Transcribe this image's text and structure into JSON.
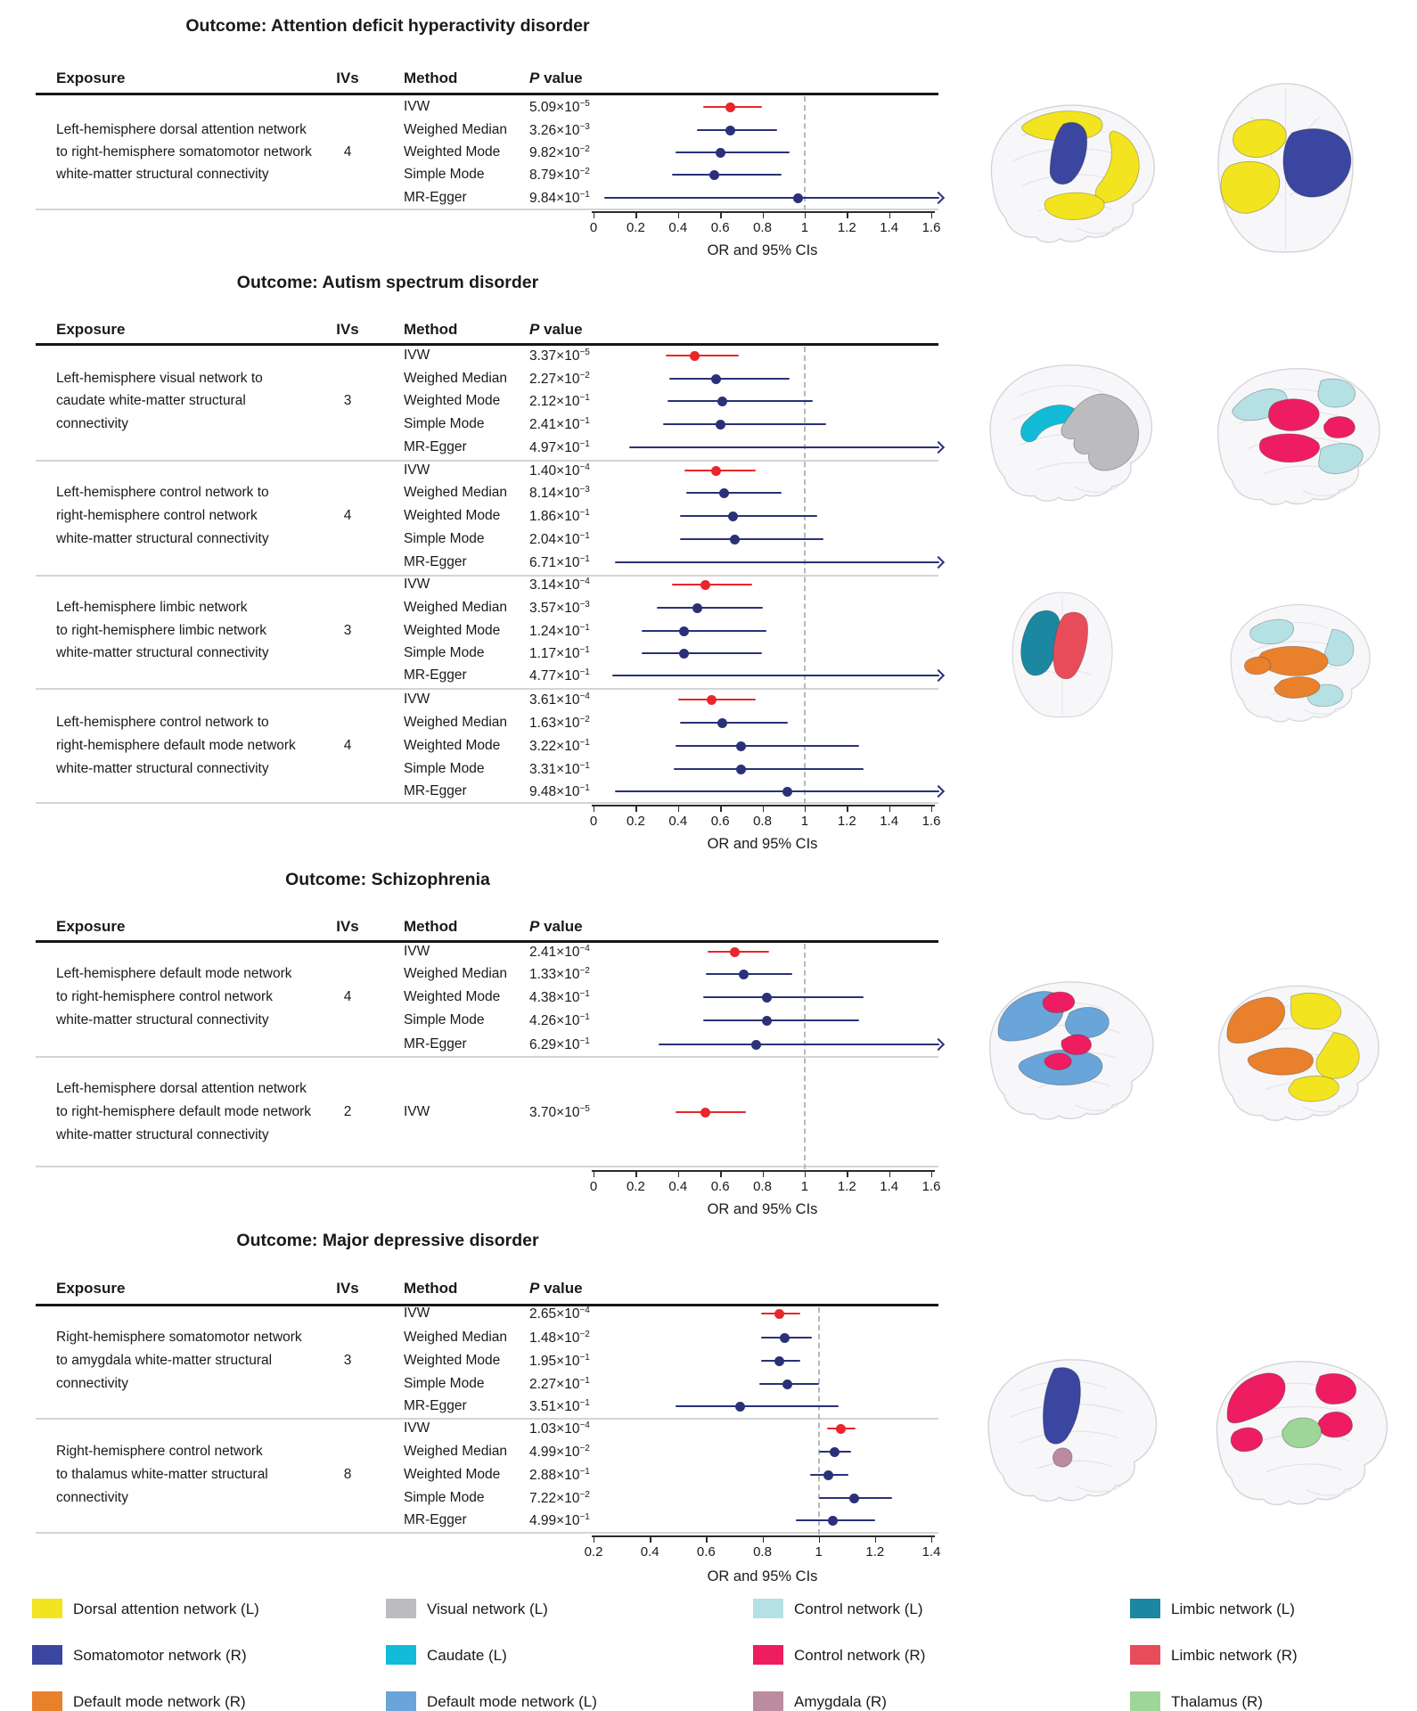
{
  "figure_colors": {
    "ivw_red": "#e8262b",
    "ci_navy": "#2a3178",
    "ref_dash": "#b8b8b8"
  },
  "chart_data": [
    {
      "type": "forest",
      "outcome": "Outcome: Attention deficit hyperactivity disorder",
      "columns": {
        "exposure": "Exposure",
        "ivs": "IVs",
        "method": "Method",
        "p_italic": "P",
        "p_rest": " value"
      },
      "axis": {
        "min": 0,
        "max": 1.6,
        "ticks": [
          "0",
          "0.2",
          "0.4",
          "0.6",
          "0.8",
          "1",
          "1.2",
          "1.4",
          "1.6"
        ],
        "tick_values": [
          0,
          0.2,
          0.4,
          0.6,
          0.8,
          1,
          1.2,
          1.4,
          1.6
        ],
        "label": "OR and 95% CIs",
        "ref_value": 1
      },
      "exposures": [
        {
          "lines": [
            "Left-hemisphere dorsal attention network",
            "to right-hemisphere somatomotor network",
            "white-matter structural connectivity"
          ],
          "ivs": "4",
          "rows": [
            {
              "method": "IVW",
              "p_base": "5.09×10",
              "p_exp": "−5",
              "or": 0.65,
              "lo": 0.52,
              "hi": 0.8,
              "significant": true
            },
            {
              "method": "Weighed Median",
              "p_base": "3.26×10",
              "p_exp": "−3",
              "or": 0.65,
              "lo": 0.49,
              "hi": 0.87
            },
            {
              "method": "Weighted Mode",
              "p_base": "9.82×10",
              "p_exp": "−2",
              "or": 0.6,
              "lo": 0.39,
              "hi": 0.93
            },
            {
              "method": "Simple Mode",
              "p_base": "8.79×10",
              "p_exp": "−2",
              "or": 0.57,
              "lo": 0.37,
              "hi": 0.89
            },
            {
              "method": "MR-Egger",
              "p_base": "9.84×10",
              "p_exp": "−1",
              "or": 0.97,
              "lo": 0.05,
              "arrow": true
            }
          ]
        }
      ],
      "brains": [
        {
          "id": "adhd-lateral",
          "view": "lateral",
          "regions": [
            {
              "network": "Dorsal attention network (L)",
              "color": "#f2e41e"
            },
            {
              "network": "Somatomotor network (R)",
              "color": "#3a46a0"
            }
          ]
        },
        {
          "id": "adhd-axial",
          "view": "axial",
          "regions": [
            {
              "network": "Dorsal attention network (L)",
              "color": "#f2e41e"
            },
            {
              "network": "Somatomotor network (R)",
              "color": "#3a46a0"
            }
          ]
        }
      ]
    },
    {
      "type": "forest",
      "outcome": "Outcome: Autism spectrum disorder",
      "columns": {
        "exposure": "Exposure",
        "ivs": "IVs",
        "method": "Method",
        "p_italic": "P",
        "p_rest": " value"
      },
      "axis": {
        "min": 0,
        "max": 1.6,
        "ticks": [
          "0",
          "0.2",
          "0.4",
          "0.6",
          "0.8",
          "1",
          "1.2",
          "1.4",
          "1.6"
        ],
        "tick_values": [
          0,
          0.2,
          0.4,
          0.6,
          0.8,
          1,
          1.2,
          1.4,
          1.6
        ],
        "label": "OR and 95% CIs",
        "ref_value": 1
      },
      "exposures": [
        {
          "lines": [
            "Left-hemisphere visual network to",
            "caudate white-matter structural",
            "connectivity"
          ],
          "ivs": "3",
          "rows": [
            {
              "method": "IVW",
              "p_base": "3.37×10",
              "p_exp": "−5",
              "or": 0.48,
              "lo": 0.34,
              "hi": 0.69,
              "significant": true
            },
            {
              "method": "Weighed Median",
              "p_base": "2.27×10",
              "p_exp": "−2",
              "or": 0.58,
              "lo": 0.36,
              "hi": 0.93
            },
            {
              "method": "Weighted Mode",
              "p_base": "2.12×10",
              "p_exp": "−1",
              "or": 0.61,
              "lo": 0.35,
              "hi": 1.04
            },
            {
              "method": "Simple Mode",
              "p_base": "2.41×10",
              "p_exp": "−1",
              "or": 0.6,
              "lo": 0.33,
              "hi": 1.1
            },
            {
              "method": "MR-Egger",
              "p_base": "4.97×10",
              "p_exp": "−1",
              "lo": 0.17,
              "arrow": true,
              "no_dot": true
            }
          ]
        },
        {
          "lines": [
            "Left-hemisphere control network to",
            "right-hemisphere control network",
            "white-matter structural connectivity"
          ],
          "ivs": "4",
          "rows": [
            {
              "method": "IVW",
              "p_base": "1.40×10",
              "p_exp": "−4",
              "or": 0.58,
              "lo": 0.43,
              "hi": 0.77,
              "significant": true
            },
            {
              "method": "Weighed Median",
              "p_base": "8.14×10",
              "p_exp": "−3",
              "or": 0.62,
              "lo": 0.44,
              "hi": 0.89
            },
            {
              "method": "Weighted Mode",
              "p_base": "1.86×10",
              "p_exp": "−1",
              "or": 0.66,
              "lo": 0.41,
              "hi": 1.06
            },
            {
              "method": "Simple Mode",
              "p_base": "2.04×10",
              "p_exp": "−1",
              "or": 0.67,
              "lo": 0.41,
              "hi": 1.09
            },
            {
              "method": "MR-Egger",
              "p_base": "6.71×10",
              "p_exp": "−1",
              "lo": 0.1,
              "arrow": true,
              "no_dot": true
            }
          ]
        },
        {
          "lines": [
            "Left-hemisphere limbic network",
            "to right-hemisphere limbic network",
            "white-matter structural connectivity"
          ],
          "ivs": "3",
          "rows": [
            {
              "method": "IVW",
              "p_base": "3.14×10",
              "p_exp": "−4",
              "or": 0.53,
              "lo": 0.37,
              "hi": 0.75,
              "significant": true
            },
            {
              "method": "Weighed Median",
              "p_base": "3.57×10",
              "p_exp": "−3",
              "or": 0.49,
              "lo": 0.3,
              "hi": 0.8
            },
            {
              "method": "Weighted Mode",
              "p_base": "1.24×10",
              "p_exp": "−1",
              "or": 0.43,
              "lo": 0.23,
              "hi": 0.82
            },
            {
              "method": "Simple Mode",
              "p_base": "1.17×10",
              "p_exp": "−1",
              "or": 0.43,
              "lo": 0.23,
              "hi": 0.8
            },
            {
              "method": "MR-Egger",
              "p_base": "4.77×10",
              "p_exp": "−1",
              "lo": 0.09,
              "arrow": true,
              "no_dot": true
            }
          ]
        },
        {
          "lines": [
            "Left-hemisphere control network to",
            "right-hemisphere default mode network",
            "white-matter structural connectivity"
          ],
          "ivs": "4",
          "rows": [
            {
              "method": "IVW",
              "p_base": "3.61×10",
              "p_exp": "−4",
              "or": 0.56,
              "lo": 0.4,
              "hi": 0.77,
              "significant": true
            },
            {
              "method": "Weighed Median",
              "p_base": "1.63×10",
              "p_exp": "−2",
              "or": 0.61,
              "lo": 0.41,
              "hi": 0.92
            },
            {
              "method": "Weighted Mode",
              "p_base": "3.22×10",
              "p_exp": "−1",
              "or": 0.7,
              "lo": 0.39,
              "hi": 1.26
            },
            {
              "method": "Simple Mode",
              "p_base": "3.31×10",
              "p_exp": "−1",
              "or": 0.7,
              "lo": 0.38,
              "hi": 1.28
            },
            {
              "method": "MR-Egger",
              "p_base": "9.48×10",
              "p_exp": "−1",
              "or": 0.92,
              "lo": 0.1,
              "arrow": true
            }
          ]
        }
      ],
      "brains": [
        {
          "id": "asd-caudate-visual",
          "view": "lateral",
          "regions": [
            {
              "network": "Caudate (L)",
              "color": "#12bcd8"
            },
            {
              "network": "Visual network (L)",
              "color": "#bcbcbe"
            }
          ]
        },
        {
          "id": "asd-control-control",
          "view": "lateral",
          "regions": [
            {
              "network": "Control network (L)",
              "color": "#b5e0e4"
            },
            {
              "network": "Control network (R)",
              "color": "#ee1d62"
            }
          ]
        },
        {
          "id": "asd-limbic-axial",
          "view": "axial",
          "regions": [
            {
              "network": "Limbic network (L)",
              "color": "#1b87a0"
            },
            {
              "network": "Limbic network (R)",
              "color": "#e84c5a"
            }
          ]
        },
        {
          "id": "asd-control-dmn",
          "view": "lateral",
          "regions": [
            {
              "network": "Control network (L)",
              "color": "#b5e0e4"
            },
            {
              "network": "Default mode network (R)",
              "color": "#e8802c"
            }
          ]
        }
      ]
    },
    {
      "type": "forest",
      "outcome": "Outcome: Schizophrenia",
      "columns": {
        "exposure": "Exposure",
        "ivs": "IVs",
        "method": "Method",
        "p_italic": "P",
        "p_rest": " value"
      },
      "axis": {
        "min": 0,
        "max": 1.6,
        "ticks": [
          "0",
          "0.2",
          "0.4",
          "0.6",
          "0.8",
          "1",
          "1.2",
          "1.4",
          "1.6"
        ],
        "tick_values": [
          0,
          0.2,
          0.4,
          0.6,
          0.8,
          1,
          1.2,
          1.4,
          1.6
        ],
        "label": "OR and 95% CIs",
        "ref_value": 1
      },
      "exposures": [
        {
          "lines": [
            "Left-hemisphere default mode network",
            "to right-hemisphere control network",
            "white-matter structural connectivity"
          ],
          "ivs": "4",
          "rows": [
            {
              "method": "IVW",
              "p_base": "2.41×10",
              "p_exp": "−4",
              "or": 0.67,
              "lo": 0.54,
              "hi": 0.83,
              "significant": true
            },
            {
              "method": "Weighed Median",
              "p_base": "1.33×10",
              "p_exp": "−2",
              "or": 0.71,
              "lo": 0.53,
              "hi": 0.94
            },
            {
              "method": "Weighted Mode",
              "p_base": "4.38×10",
              "p_exp": "−1",
              "or": 0.82,
              "lo": 0.52,
              "hi": 1.28
            },
            {
              "method": "Simple Mode",
              "p_base": "4.26×10",
              "p_exp": "−1",
              "or": 0.82,
              "lo": 0.52,
              "hi": 1.26
            },
            {
              "method": "MR-Egger",
              "p_base": "6.29×10",
              "p_exp": "−1",
              "or": 0.77,
              "lo": 0.31,
              "arrow": true
            }
          ]
        },
        {
          "lines": [
            "Left-hemisphere dorsal attention network",
            "to right-hemisphere default mode network",
            "white-matter structural connectivity"
          ],
          "ivs": "2",
          "rows": [
            {
              "method": "IVW",
              "p_base": "3.70×10",
              "p_exp": "−5",
              "or": 0.53,
              "lo": 0.39,
              "hi": 0.72,
              "significant": true
            }
          ]
        }
      ],
      "brains": [
        {
          "id": "scz-dmn-control",
          "view": "lateral",
          "regions": [
            {
              "network": "Default mode network (L)",
              "color": "#69a5d8"
            },
            {
              "network": "Control network (R)",
              "color": "#ee1d62"
            }
          ]
        },
        {
          "id": "scz-dmn-dorsal",
          "view": "lateral",
          "regions": [
            {
              "network": "Default mode network (R)",
              "color": "#e8802c"
            },
            {
              "network": "Dorsal attention network (L)",
              "color": "#f2e41e"
            }
          ]
        }
      ]
    },
    {
      "type": "forest",
      "outcome": "Outcome: Major depressive disorder",
      "columns": {
        "exposure": "Exposure",
        "ivs": "IVs",
        "method": "Method",
        "p_italic": "P",
        "p_rest": " value"
      },
      "axis": {
        "min": 0.2,
        "max": 1.4,
        "ticks": [
          "0.2",
          "0.4",
          "0.6",
          "0.8",
          "1",
          "1.2",
          "1.4"
        ],
        "tick_values": [
          0.2,
          0.4,
          0.6,
          0.8,
          1,
          1.2,
          1.4
        ],
        "label": "OR and 95% CIs",
        "ref_value": 1
      },
      "exposures": [
        {
          "lines": [
            "Right-hemisphere somatomotor network",
            "to amygdala white-matter structural",
            "connectivity"
          ],
          "ivs": "3",
          "rows": [
            {
              "method": "IVW",
              "p_base": "2.65×10",
              "p_exp": "−4",
              "or": 0.86,
              "lo": 0.795,
              "hi": 0.935,
              "significant": true
            },
            {
              "method": "Weighed Median",
              "p_base": "1.48×10",
              "p_exp": "−2",
              "or": 0.88,
              "lo": 0.795,
              "hi": 0.975
            },
            {
              "method": "Weighted Mode",
              "p_base": "1.95×10",
              "p_exp": "−1",
              "or": 0.86,
              "lo": 0.795,
              "hi": 0.935
            },
            {
              "method": "Simple Mode",
              "p_base": "2.27×10",
              "p_exp": "−1",
              "or": 0.89,
              "lo": 0.79,
              "hi": 1.0
            },
            {
              "method": "MR-Egger",
              "p_base": "3.51×10",
              "p_exp": "−1",
              "or": 0.72,
              "lo": 0.49,
              "hi": 1.07
            }
          ]
        },
        {
          "lines": [
            "Right-hemisphere control network",
            "to thalamus white-matter structural",
            "connectivity"
          ],
          "ivs": "8",
          "rows": [
            {
              "method": "IVW",
              "p_base": "1.03×10",
              "p_exp": "−4",
              "or": 1.08,
              "lo": 1.03,
              "hi": 1.13,
              "significant": true
            },
            {
              "method": "Weighed Median",
              "p_base": "4.99×10",
              "p_exp": "−2",
              "or": 1.055,
              "lo": 1.0,
              "hi": 1.115
            },
            {
              "method": "Weighted Mode",
              "p_base": "2.88×10",
              "p_exp": "−1",
              "or": 1.035,
              "lo": 0.97,
              "hi": 1.105
            },
            {
              "method": "Simple Mode",
              "p_base": "7.22×10",
              "p_exp": "−2",
              "or": 1.125,
              "lo": 1.0,
              "hi": 1.26
            },
            {
              "method": "MR-Egger",
              "p_base": "4.99×10",
              "p_exp": "−1",
              "or": 1.05,
              "lo": 0.92,
              "hi": 1.2
            }
          ]
        }
      ],
      "brains": [
        {
          "id": "mdd-somato-amyg",
          "view": "lateral",
          "regions": [
            {
              "network": "Somatomotor network (R)",
              "color": "#3a46a0"
            },
            {
              "network": "Amygdala (R)",
              "color": "#bb8ba0"
            }
          ]
        },
        {
          "id": "mdd-control-thal",
          "view": "lateral",
          "regions": [
            {
              "network": "Control network (R)",
              "color": "#ee1d62"
            },
            {
              "network": "Thalamus (R)",
              "color": "#9ed598"
            }
          ]
        }
      ]
    }
  ],
  "legend": {
    "columns": [
      {
        "items": [
          {
            "label": "Dorsal attention network (L)",
            "color": "#f2e41e"
          },
          {
            "label": "Somatomotor network (R)",
            "color": "#3a46a0"
          },
          {
            "label": "Default mode network (R)",
            "color": "#e8802c"
          }
        ]
      },
      {
        "items": [
          {
            "label": "Visual network (L)",
            "color": "#bcbcbe"
          },
          {
            "label": "Caudate (L)",
            "color": "#12bcd8"
          },
          {
            "label": "Default mode network (L)",
            "color": "#69a5d8"
          }
        ]
      },
      {
        "items": [
          {
            "label": "Control network (L)",
            "color": "#b5e0e4"
          },
          {
            "label": "Control network (R)",
            "color": "#ee1d62"
          },
          {
            "label": "Amygdala (R)",
            "color": "#bb8ba0"
          }
        ]
      },
      {
        "items": [
          {
            "label": "Limbic network (L)",
            "color": "#1b87a0"
          },
          {
            "label": "Limbic network (R)",
            "color": "#e84c5a"
          },
          {
            "label": "Thalamus (R)",
            "color": "#9ed598"
          }
        ]
      }
    ]
  }
}
